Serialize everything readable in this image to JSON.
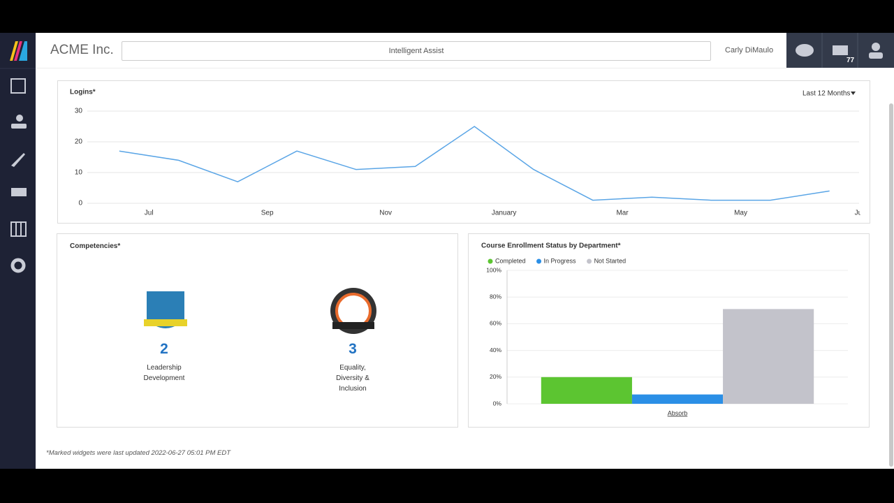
{
  "header": {
    "company": "ACME Inc.",
    "search_placeholder": "Intelligent Assist",
    "user": "Carly DiMaulo",
    "message_count": 77
  },
  "chart_data": [
    {
      "type": "line",
      "title": "Logins*",
      "range_selector": "Last 12 Months",
      "x": [
        0,
        1,
        2,
        3,
        4,
        5,
        6,
        7,
        8,
        9,
        10,
        11,
        12
      ],
      "values": [
        17,
        14,
        7,
        17,
        11,
        12,
        25,
        11,
        1,
        2,
        1,
        1,
        4
      ],
      "color": "#5aa5e6",
      "xlim": [
        -0.6,
        12.5
      ],
      "xticks": [
        {
          "value": 0.5,
          "label": "Jul"
        },
        {
          "value": 2.5,
          "label": "Sep"
        },
        {
          "value": 4.5,
          "label": "Nov"
        },
        {
          "value": 6.5,
          "label": "January"
        },
        {
          "value": 8.5,
          "label": "Mar"
        },
        {
          "value": 10.5,
          "label": "May"
        },
        {
          "value": 12.5,
          "label": "Jul"
        }
      ],
      "ylim": [
        0,
        30
      ],
      "yticks": [
        0,
        10,
        20,
        30
      ],
      "grid": true
    },
    {
      "type": "bar",
      "title": "Course Enrollment Status by Department*",
      "categories": [
        "Absorb"
      ],
      "series": [
        {
          "name": "Completed",
          "color": "#5cc531",
          "values": [
            20
          ]
        },
        {
          "name": "In Progress",
          "color": "#2b8fe6",
          "values": [
            7
          ]
        },
        {
          "name": "Not Started",
          "color": "#c3c3cb",
          "values": [
            71
          ]
        }
      ],
      "ylim": [
        0,
        100
      ],
      "yticks": [
        {
          "value": 0,
          "label": "0%"
        },
        {
          "value": 20,
          "label": "20%"
        },
        {
          "value": 40,
          "label": "40%"
        },
        {
          "value": 60,
          "label": "60%"
        },
        {
          "value": 80,
          "label": "80%"
        },
        {
          "value": 100,
          "label": "100%"
        }
      ],
      "grid": true,
      "legend": "top-left"
    }
  ],
  "competencies": {
    "title": "Competencies*",
    "items": [
      {
        "count": 2,
        "label": "Leadership Development"
      },
      {
        "count": 3,
        "label": "Equality, Diversity & Inclusion"
      }
    ]
  },
  "footer": "*Marked widgets were last updated 2022-06-27 05:01 PM EDT"
}
